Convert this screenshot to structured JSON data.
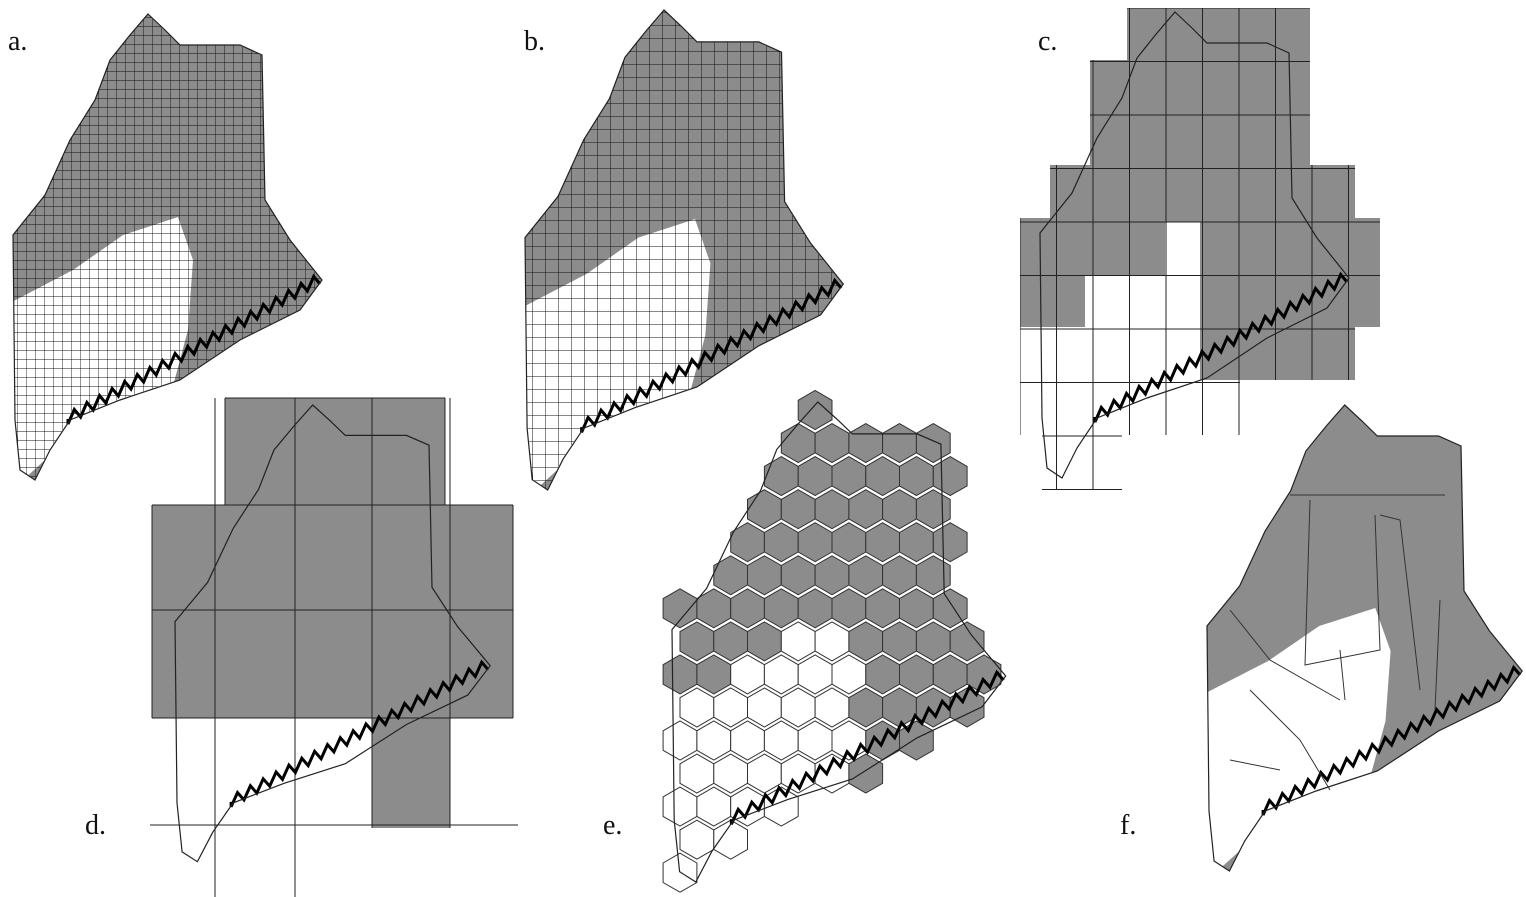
{
  "panels": [
    {
      "label": "a."
    },
    {
      "label": "b."
    },
    {
      "label": "c."
    },
    {
      "label": "d."
    },
    {
      "label": "e."
    },
    {
      "label": "f."
    }
  ]
}
